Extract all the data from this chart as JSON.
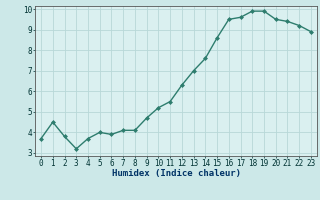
{
  "x": [
    0,
    1,
    2,
    3,
    4,
    5,
    6,
    7,
    8,
    9,
    10,
    11,
    12,
    13,
    14,
    15,
    16,
    17,
    18,
    19,
    20,
    21,
    22,
    23
  ],
  "y": [
    3.7,
    4.5,
    3.8,
    3.2,
    3.7,
    4.0,
    3.9,
    4.1,
    4.1,
    4.7,
    5.2,
    5.5,
    6.3,
    7.0,
    7.6,
    8.6,
    9.5,
    9.6,
    9.9,
    9.9,
    9.5,
    9.4,
    9.2,
    8.9
  ],
  "xlabel": "Humidex (Indice chaleur)",
  "xlim": [
    -0.5,
    23.5
  ],
  "ylim": [
    2.85,
    10.15
  ],
  "yticks": [
    3,
    4,
    5,
    6,
    7,
    8,
    9,
    10
  ],
  "xticks": [
    0,
    1,
    2,
    3,
    4,
    5,
    6,
    7,
    8,
    9,
    10,
    11,
    12,
    13,
    14,
    15,
    16,
    17,
    18,
    19,
    20,
    21,
    22,
    23
  ],
  "line_color": "#2e7d6e",
  "marker": "D",
  "marker_size": 2.0,
  "bg_color": "#cce8e8",
  "plot_bg": "#daf0f0",
  "grid_color": "#b8d8d8",
  "xlabel_color": "#003366",
  "tick_color": "#003333",
  "xlabel_fontsize": 6.5,
  "tick_fontsize": 5.5,
  "linewidth": 1.0
}
